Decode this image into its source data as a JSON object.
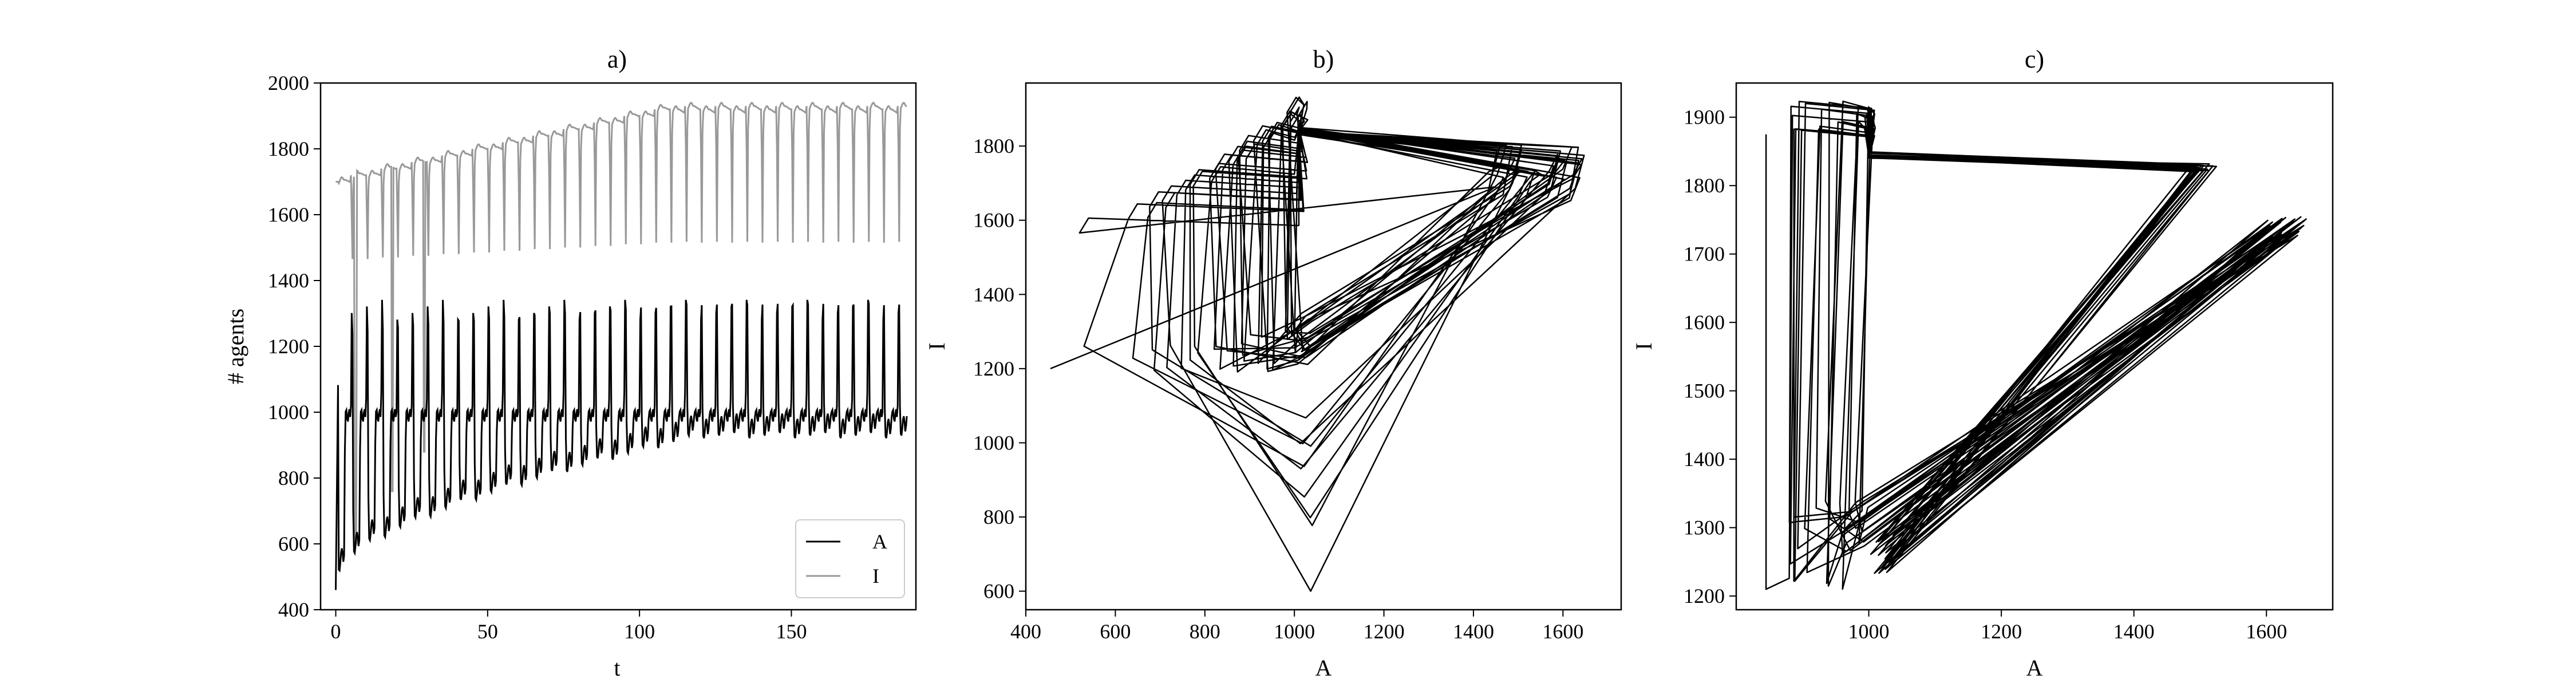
{
  "chart_data": [
    {
      "type": "line",
      "title": "a)",
      "xlabel": "t",
      "ylabel": "# agents",
      "xlim": [
        -5,
        191
      ],
      "ylim": [
        400,
        2000
      ],
      "xticks": [
        0,
        50,
        100,
        150
      ],
      "yticks": [
        400,
        600,
        800,
        1000,
        1200,
        1400,
        1600,
        1800,
        2000
      ],
      "grid": false,
      "legend": "lower-right",
      "series": [
        {
          "name": "A",
          "color": "#000000",
          "values_note": "",
          "pulse_period": 5,
          "pulse_count": 37,
          "high": 1000,
          "spike": 1450,
          "floor_min": [
            520,
            950
          ],
          "floor_t_max_rise": 120
        },
        {
          "name": "I",
          "color": "#999999",
          "baseline_start": 1700,
          "baseline_end": 1920,
          "dips_to": 600
        }
      ]
    },
    {
      "type": "line",
      "title": "b)",
      "xlabel": "A",
      "ylabel": "I",
      "xlim": [
        400,
        1730
      ],
      "ylim": [
        550,
        1970
      ],
      "xticks": [
        400,
        600,
        800,
        1000,
        1200,
        1400,
        1600
      ],
      "yticks": [
        600,
        800,
        1000,
        1200,
        1400,
        1600,
        1800
      ],
      "grid": false,
      "color": "#000000"
    },
    {
      "type": "line",
      "title": "c)",
      "xlabel": "A",
      "ylabel": "I",
      "xlim": [
        800,
        1700
      ],
      "ylim": [
        1180,
        1950
      ],
      "xticks": [
        1000,
        1200,
        1400,
        1600
      ],
      "yticks": [
        1200,
        1300,
        1400,
        1500,
        1600,
        1700,
        1800,
        1900
      ],
      "grid": false,
      "color": "#000000"
    }
  ]
}
